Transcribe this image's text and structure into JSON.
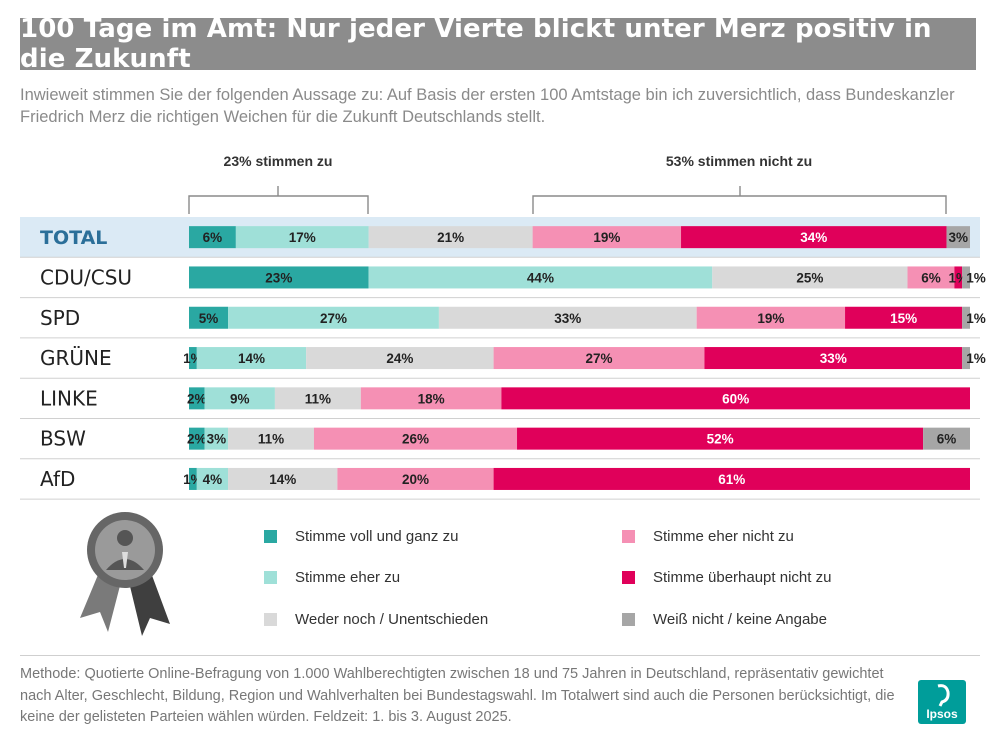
{
  "header": {
    "title": "100 Tage im Amt: Nur jeder Vierte blickt unter Merz positiv in die Zukunft",
    "subtitle": "Inwieweit stimmen Sie der folgenden Aussage zu: Auf Basis der ersten 100 Amtstage bin ich zuversichtlich, dass Bundeskanzler Friedrich Merz die richtigen Weichen für die Zukunft Deutschlands stellt."
  },
  "annotations": {
    "agree": "23% stimmen zu",
    "disagree": "53% stimmen nicht zu"
  },
  "chart_data": {
    "type": "bar",
    "orientation": "horizontal",
    "stacked": true,
    "percent_scale": 100,
    "categories": [
      "TOTAL",
      "CDU/CSU",
      "SPD",
      "GRÜNE",
      "LINKE",
      "BSW",
      "AfD"
    ],
    "series": [
      {
        "name": "Stimme voll und ganz zu",
        "color": "#2aa8a2",
        "values": [
          6,
          23,
          5,
          1,
          2,
          2,
          1
        ]
      },
      {
        "name": "Stimme eher zu",
        "color": "#9fe0d8",
        "values": [
          17,
          44,
          27,
          14,
          9,
          3,
          4
        ]
      },
      {
        "name": "Weder noch / Unentschieden",
        "color": "#d9d9d9",
        "values": [
          21,
          25,
          33,
          24,
          11,
          11,
          14
        ]
      },
      {
        "name": "Stimme eher nicht zu",
        "color": "#f590b4",
        "values": [
          19,
          6,
          19,
          27,
          18,
          26,
          20
        ]
      },
      {
        "name": "Stimme überhaupt nicht zu",
        "color": "#e0005a",
        "values": [
          34,
          1,
          15,
          33,
          60,
          52,
          61
        ]
      },
      {
        "name": "Weiß nicht / keine Angabe",
        "color": "#a6a6a6",
        "values": [
          3,
          1,
          1,
          1,
          0,
          6,
          0
        ]
      }
    ],
    "data_labels": [
      [
        "6%",
        "17%",
        "21%",
        "19%",
        "34%",
        "3%"
      ],
      [
        "23%",
        "44%",
        "25%",
        "6%",
        "1%",
        "1%"
      ],
      [
        "5%",
        "27%",
        "33%",
        "19%",
        "15%",
        "1%"
      ],
      [
        "1%",
        "14%",
        "24%",
        "27%",
        "33%",
        "1%"
      ],
      [
        "2%",
        "9%",
        "11%",
        "18%",
        "60%",
        ""
      ],
      [
        "2%",
        "3%",
        "11%",
        "26%",
        "52%",
        "6%"
      ],
      [
        "1%",
        "4%",
        "14%",
        "20%",
        "61%",
        ""
      ]
    ],
    "highlight_category": "TOTAL",
    "legend_position": "bottom"
  },
  "footer": {
    "methodology": "Methode: Quotierte Online-Befragung von 1.000 Wahlberechtigten zwischen 18 und 75 Jahren in Deutschland, repräsentativ gewichtet nach Alter, Geschlecht, Bildung, Region und Wahlverhalten bei Bundestagswahl. Im Totalwert sind auch die Personen berücksichtigt, die keine der gelisteten Parteien wählen würden. Feldzeit: 1. bis 3. August 2025.",
    "logo_text": "Ipsos"
  },
  "colors": {
    "title_bar": "#8c8c8c",
    "highlight_row": "#dbeaf5",
    "total_label": "#2b6f99"
  }
}
